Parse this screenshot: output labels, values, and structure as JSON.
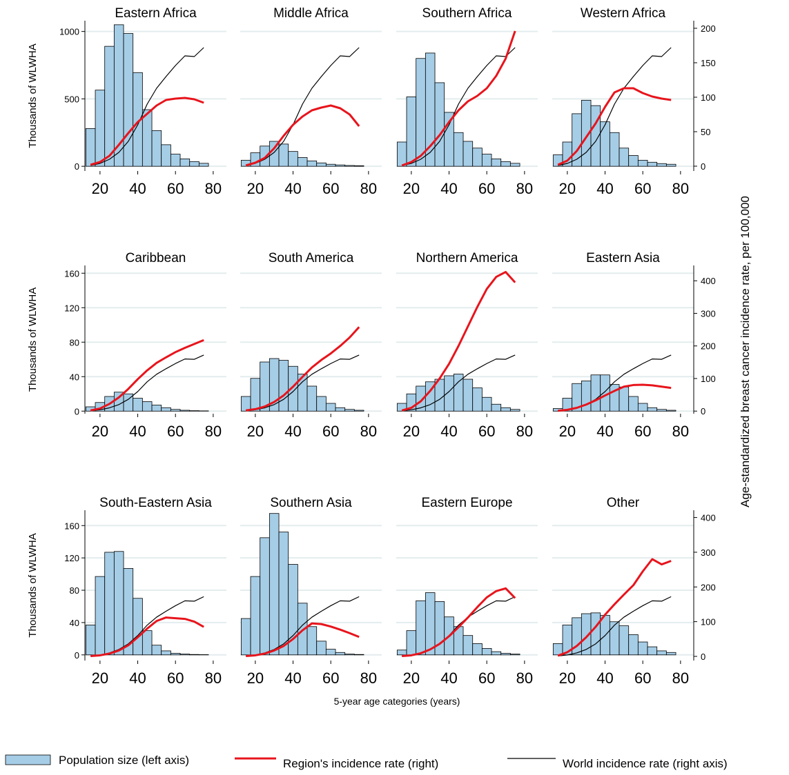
{
  "chart_data": {
    "type": "bar_line_panels",
    "y_label": "Thousands of WLWHA",
    "y2_label": "Age-standardized breast cancer incidence rate, per 100,000",
    "x_label": "5-year age categories (years)",
    "xlim": [
      12,
      87
    ],
    "xticks": [
      20,
      40,
      60,
      80
    ],
    "bins": [
      12.5,
      17.5,
      22.5,
      27.5,
      32.5,
      37.5,
      42.5,
      47.5,
      52.5,
      57.5,
      62.5,
      67.5,
      72.5,
      77.5
    ],
    "x": [
      15,
      20,
      25,
      30,
      35,
      40,
      45,
      50,
      55,
      60,
      65,
      70,
      75
    ],
    "series": [
      {
        "name": "Population size (left axis)",
        "color": "#a6cde6"
      },
      {
        "name": "Region's incidence rate  (right)",
        "color": "#e8141c",
        "axis": "y2"
      },
      {
        "name": "World incidence rate (right axis)",
        "color": "#000000",
        "axis": "y2",
        "values": [
          1,
          4,
          10,
          20,
          36,
          60,
          90,
          113,
          130,
          146,
          160,
          159,
          172
        ]
      }
    ],
    "rows": [
      {
        "ylim": [
          -35,
          1080
        ],
        "yticks": [
          0,
          500,
          1000
        ],
        "y2lim": [
          -7,
          211
        ],
        "y2ticks": [
          0,
          50,
          100,
          150,
          200
        ],
        "panels": [
          {
            "title": "Eastern Africa",
            "values": [
              280,
              565,
              890,
              1050,
              985,
              695,
              420,
              265,
              160,
              90,
              55,
              35,
              22
            ],
            "region": [
              2,
              6,
              15,
              31,
              48,
              64,
              76,
              88,
              96,
              98,
              99,
              97,
              92
            ]
          },
          {
            "title": "Middle Africa",
            "values": [
              45,
              100,
              150,
              185,
              165,
              110,
              65,
              40,
              25,
              15,
              10,
              6,
              4
            ],
            "region": [
              1,
              5,
              12,
              26,
              44,
              60,
              72,
              81,
              85,
              88,
              84,
              75,
              58
            ]
          },
          {
            "title": "Southern Africa",
            "values": [
              180,
              515,
              800,
              840,
              620,
              400,
              250,
              185,
              135,
              90,
              55,
              35,
              22
            ],
            "region": [
              1,
              6,
              15,
              29,
              45,
              64,
              81,
              94,
              102,
              113,
              131,
              156,
              196
            ]
          },
          {
            "title": "Western Africa",
            "values": [
              85,
              180,
              390,
              490,
              450,
              330,
              250,
              135,
              80,
              45,
              30,
              20,
              15
            ],
            "region": [
              2,
              8,
              22,
              42,
              62,
              86,
              107,
              113,
              113,
              106,
              101,
              98,
              96
            ]
          }
        ]
      },
      {
        "ylim": [
          -3,
          169
        ],
        "yticks": [
          0,
          40,
          80,
          120,
          160
        ],
        "y2lim": [
          -8,
          447
        ],
        "y2ticks": [
          0,
          100,
          200,
          300,
          400
        ],
        "panels": [
          {
            "title": "Caribbean",
            "values": [
              5,
              10,
              17,
              22,
              20,
              15,
              11,
              7,
              4,
              2,
              1,
              0.5,
              0.3
            ],
            "region": [
              2,
              8,
              22,
              42,
              68,
              98,
              125,
              148,
              165,
              181,
              194,
              206,
              218
            ]
          },
          {
            "title": "South America",
            "values": [
              17,
              38,
              57,
              61,
              59,
              52,
              43,
              29,
              17,
              9,
              4,
              2,
              1
            ],
            "region": [
              2,
              6,
              14,
              28,
              48,
              75,
              105,
              134,
              157,
              177,
              200,
              226,
              258
            ]
          },
          {
            "title": "Northern America",
            "values": [
              9,
              20,
              29,
              34,
              37,
              41,
              43,
              37,
              27,
              16,
              8,
              4,
              2
            ],
            "region": [
              2,
              10,
              30,
              62,
              100,
              145,
              200,
              260,
              320,
              375,
              412,
              427,
              395
            ]
          },
          {
            "title": "Eastern Asia",
            "values": [
              3,
              15,
              32,
              35,
              42,
              42,
              31,
              28,
              17,
              9,
              4,
              2,
              1
            ],
            "region": [
              1,
              4,
              10,
              20,
              33,
              48,
              62,
              75,
              80,
              81,
              79,
              75,
              71
            ]
          }
        ]
      },
      {
        "ylim": [
          -7,
          179
        ],
        "yticks": [
          0,
          40,
          80,
          120,
          160
        ],
        "y2lim": [
          -12,
          421
        ],
        "y2ticks": [
          0,
          100,
          200,
          300,
          400
        ],
        "panels": [
          {
            "title": "South-Eastern Asia",
            "values": [
              37,
              97,
              127,
              128,
              107,
              70,
              30,
              12,
              5,
              2,
              1,
              0.5,
              0.3
            ],
            "region": [
              1,
              3,
              8,
              17,
              32,
              55,
              80,
              102,
              112,
              110,
              108,
              100,
              85
            ]
          },
          {
            "title": "Southern Asia",
            "values": [
              45,
              97,
              145,
              175,
              152,
              112,
              64,
              35,
              17,
              7,
              3,
              1,
              0.5
            ],
            "region": [
              1,
              3,
              8,
              17,
              30,
              50,
              75,
              95,
              93,
              86,
              77,
              67,
              56
            ]
          },
          {
            "title": "Eastern Europe",
            "values": [
              6,
              30,
              67,
              77,
              66,
              47,
              35,
              24,
              14,
              8,
              4,
              2,
              1
            ],
            "region": [
              1,
              3,
              9,
              20,
              36,
              58,
              84,
              112,
              142,
              170,
              188,
              196,
              168
            ]
          },
          {
            "title": "Other",
            "values": [
              14,
              37,
              46,
              51,
              52,
              49,
              41,
              36,
              25,
              16,
              10,
              5,
              3
            ],
            "region": [
              2,
              12,
              30,
              55,
              85,
              120,
              150,
              178,
              205,
              245,
              280,
              265,
              275
            ]
          }
        ]
      }
    ]
  }
}
